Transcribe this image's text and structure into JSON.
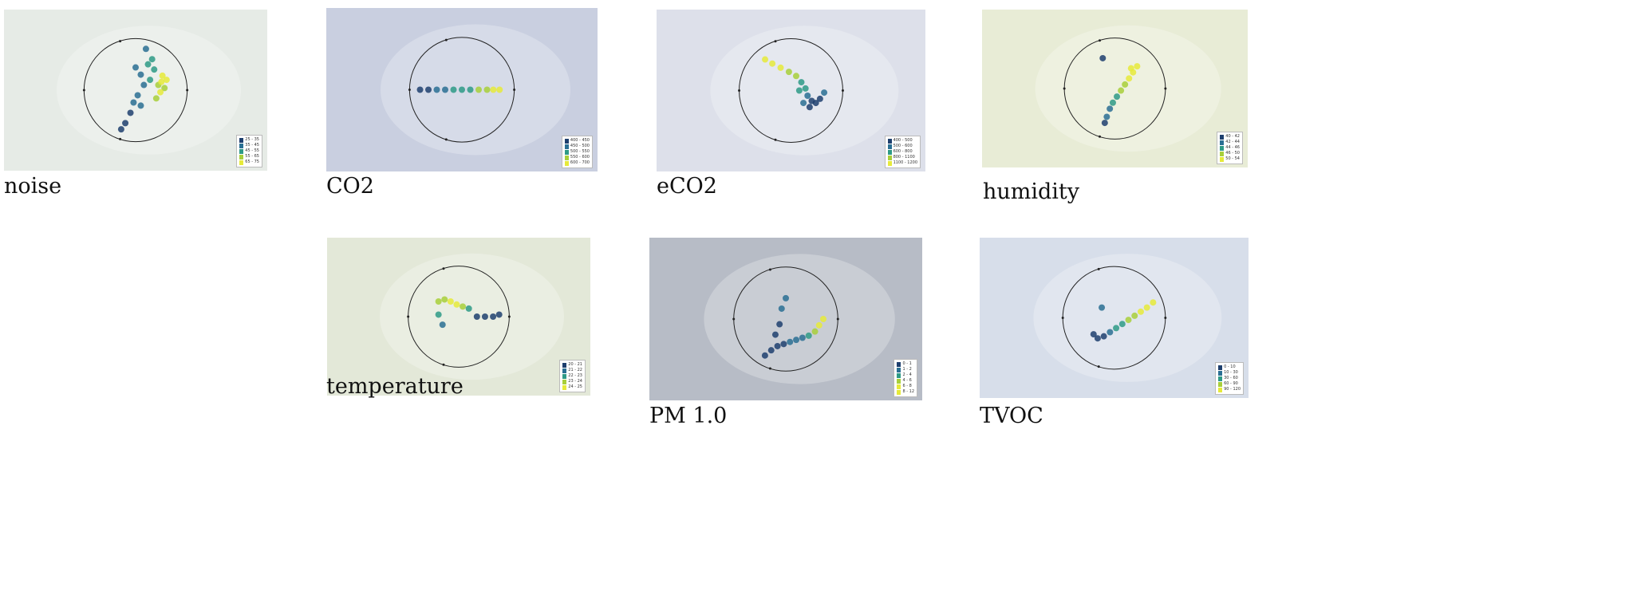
{
  "palette": [
    "#1e3f6e",
    "#2a6f93",
    "#2e9a86",
    "#a8cf3a",
    "#e6ea3a"
  ],
  "panels": [
    {
      "caption": "noise",
      "chart_data": {
        "type": "scatter",
        "background": "#e6ebe6",
        "legend": [
          "25 - 35",
          "35 - 45",
          "45 - 55",
          "55 - 65",
          "65 - 75"
        ],
        "points": [
          {
            "x": 0.72,
            "y": 0.45,
            "v": 3
          },
          {
            "x": 0.75,
            "y": 0.42,
            "v": 4
          },
          {
            "x": 0.78,
            "y": 0.48,
            "v": 3
          },
          {
            "x": 0.74,
            "y": 0.52,
            "v": 4
          },
          {
            "x": 0.7,
            "y": 0.58,
            "v": 3
          },
          {
            "x": 0.76,
            "y": 0.36,
            "v": 4
          },
          {
            "x": 0.68,
            "y": 0.3,
            "v": 2
          },
          {
            "x": 0.62,
            "y": 0.25,
            "v": 2
          },
          {
            "x": 0.66,
            "y": 0.2,
            "v": 2
          },
          {
            "x": 0.55,
            "y": 0.35,
            "v": 1
          },
          {
            "x": 0.58,
            "y": 0.45,
            "v": 1
          },
          {
            "x": 0.52,
            "y": 0.55,
            "v": 1
          },
          {
            "x": 0.48,
            "y": 0.62,
            "v": 1
          },
          {
            "x": 0.45,
            "y": 0.72,
            "v": 0
          },
          {
            "x": 0.4,
            "y": 0.82,
            "v": 0
          },
          {
            "x": 0.36,
            "y": 0.88,
            "v": 0
          },
          {
            "x": 0.6,
            "y": 0.1,
            "v": 1
          },
          {
            "x": 0.5,
            "y": 0.28,
            "v": 1
          },
          {
            "x": 0.64,
            "y": 0.4,
            "v": 2
          },
          {
            "x": 0.8,
            "y": 0.4,
            "v": 4
          },
          {
            "x": 0.55,
            "y": 0.65,
            "v": 1
          }
        ]
      }
    },
    {
      "caption": "CO2",
      "chart_data": {
        "type": "scatter",
        "background": "#c9cfe0",
        "legend": [
          "400 - 450",
          "450 - 500",
          "500 - 550",
          "550 - 600",
          "600 - 700"
        ],
        "points": [
          {
            "x": 0.1,
            "y": 0.5,
            "v": 0
          },
          {
            "x": 0.18,
            "y": 0.5,
            "v": 0
          },
          {
            "x": 0.26,
            "y": 0.5,
            "v": 1
          },
          {
            "x": 0.34,
            "y": 0.5,
            "v": 1
          },
          {
            "x": 0.42,
            "y": 0.5,
            "v": 2
          },
          {
            "x": 0.5,
            "y": 0.5,
            "v": 2
          },
          {
            "x": 0.58,
            "y": 0.5,
            "v": 2
          },
          {
            "x": 0.66,
            "y": 0.5,
            "v": 3
          },
          {
            "x": 0.74,
            "y": 0.5,
            "v": 3
          },
          {
            "x": 0.8,
            "y": 0.5,
            "v": 4
          },
          {
            "x": 0.86,
            "y": 0.5,
            "v": 4
          }
        ]
      }
    },
    {
      "caption": "eCO2",
      "chart_data": {
        "type": "scatter",
        "background": "#dde0ea",
        "legend": [
          "400 - 500",
          "500 - 600",
          "600 - 800",
          "800 - 1100",
          "1100 - 1200"
        ],
        "points": [
          {
            "x": 0.25,
            "y": 0.2,
            "v": 4
          },
          {
            "x": 0.32,
            "y": 0.24,
            "v": 4
          },
          {
            "x": 0.4,
            "y": 0.28,
            "v": 4
          },
          {
            "x": 0.48,
            "y": 0.32,
            "v": 3
          },
          {
            "x": 0.55,
            "y": 0.36,
            "v": 3
          },
          {
            "x": 0.6,
            "y": 0.42,
            "v": 2
          },
          {
            "x": 0.64,
            "y": 0.48,
            "v": 2
          },
          {
            "x": 0.66,
            "y": 0.55,
            "v": 1
          },
          {
            "x": 0.7,
            "y": 0.6,
            "v": 0
          },
          {
            "x": 0.74,
            "y": 0.62,
            "v": 0
          },
          {
            "x": 0.78,
            "y": 0.58,
            "v": 0
          },
          {
            "x": 0.82,
            "y": 0.52,
            "v": 1
          },
          {
            "x": 0.68,
            "y": 0.66,
            "v": 0
          },
          {
            "x": 0.62,
            "y": 0.62,
            "v": 1
          },
          {
            "x": 0.58,
            "y": 0.5,
            "v": 2
          }
        ]
      }
    },
    {
      "caption": "humidity",
      "chart_data": {
        "type": "scatter",
        "background": "#e8ecd6",
        "legend": [
          "40 - 42",
          "42 - 44",
          "44 - 46",
          "46 - 50",
          "50 - 54"
        ],
        "points": [
          {
            "x": 0.72,
            "y": 0.28,
            "v": 4
          },
          {
            "x": 0.68,
            "y": 0.34,
            "v": 4
          },
          {
            "x": 0.64,
            "y": 0.4,
            "v": 4
          },
          {
            "x": 0.6,
            "y": 0.46,
            "v": 3
          },
          {
            "x": 0.56,
            "y": 0.52,
            "v": 3
          },
          {
            "x": 0.52,
            "y": 0.58,
            "v": 2
          },
          {
            "x": 0.48,
            "y": 0.64,
            "v": 2
          },
          {
            "x": 0.45,
            "y": 0.7,
            "v": 1
          },
          {
            "x": 0.42,
            "y": 0.78,
            "v": 1
          },
          {
            "x": 0.4,
            "y": 0.84,
            "v": 0
          },
          {
            "x": 0.38,
            "y": 0.2,
            "v": 0
          },
          {
            "x": 0.66,
            "y": 0.3,
            "v": 4
          }
        ]
      }
    },
    {
      "caption": "temperature",
      "chart_data": {
        "type": "scatter",
        "background": "#e3e8d8",
        "legend": [
          "20 - 21",
          "21 - 22",
          "22 - 23",
          "23 - 24",
          "24 - 25"
        ],
        "points": [
          {
            "x": 0.3,
            "y": 0.35,
            "v": 3
          },
          {
            "x": 0.36,
            "y": 0.33,
            "v": 3
          },
          {
            "x": 0.42,
            "y": 0.35,
            "v": 4
          },
          {
            "x": 0.48,
            "y": 0.38,
            "v": 4
          },
          {
            "x": 0.54,
            "y": 0.4,
            "v": 3
          },
          {
            "x": 0.6,
            "y": 0.42,
            "v": 2
          },
          {
            "x": 0.3,
            "y": 0.48,
            "v": 2
          },
          {
            "x": 0.34,
            "y": 0.58,
            "v": 1
          },
          {
            "x": 0.68,
            "y": 0.5,
            "v": 0
          },
          {
            "x": 0.76,
            "y": 0.5,
            "v": 0
          },
          {
            "x": 0.84,
            "y": 0.5,
            "v": 0
          },
          {
            "x": 0.9,
            "y": 0.48,
            "v": 0
          }
        ]
      }
    },
    {
      "caption": "PM 1.0",
      "chart_data": {
        "type": "scatter",
        "background": "#b7bcc6",
        "legend": [
          "0 - 1",
          "1 - 2",
          "2 - 4",
          "4 - 6",
          "6 - 8",
          "8 - 12"
        ],
        "points": [
          {
            "x": 0.3,
            "y": 0.85,
            "v": 0
          },
          {
            "x": 0.36,
            "y": 0.8,
            "v": 0
          },
          {
            "x": 0.42,
            "y": 0.76,
            "v": 0
          },
          {
            "x": 0.48,
            "y": 0.74,
            "v": 0
          },
          {
            "x": 0.54,
            "y": 0.72,
            "v": 1
          },
          {
            "x": 0.6,
            "y": 0.7,
            "v": 1
          },
          {
            "x": 0.66,
            "y": 0.68,
            "v": 1
          },
          {
            "x": 0.72,
            "y": 0.66,
            "v": 2
          },
          {
            "x": 0.78,
            "y": 0.62,
            "v": 3
          },
          {
            "x": 0.82,
            "y": 0.56,
            "v": 4
          },
          {
            "x": 0.86,
            "y": 0.5,
            "v": 5
          },
          {
            "x": 0.5,
            "y": 0.3,
            "v": 1
          },
          {
            "x": 0.46,
            "y": 0.4,
            "v": 1
          },
          {
            "x": 0.44,
            "y": 0.55,
            "v": 0
          },
          {
            "x": 0.4,
            "y": 0.65,
            "v": 0
          }
        ]
      }
    },
    {
      "caption": "TVOC",
      "chart_data": {
        "type": "scatter",
        "background": "#d7deea",
        "legend": [
          "0 - 10",
          "10 - 30",
          "30 - 60",
          "60 - 90",
          "90 - 120"
        ],
        "points": [
          {
            "x": 0.88,
            "y": 0.35,
            "v": 4
          },
          {
            "x": 0.82,
            "y": 0.4,
            "v": 4
          },
          {
            "x": 0.76,
            "y": 0.44,
            "v": 4
          },
          {
            "x": 0.7,
            "y": 0.48,
            "v": 3
          },
          {
            "x": 0.64,
            "y": 0.52,
            "v": 3
          },
          {
            "x": 0.58,
            "y": 0.56,
            "v": 2
          },
          {
            "x": 0.52,
            "y": 0.6,
            "v": 2
          },
          {
            "x": 0.46,
            "y": 0.64,
            "v": 1
          },
          {
            "x": 0.4,
            "y": 0.68,
            "v": 0
          },
          {
            "x": 0.34,
            "y": 0.7,
            "v": 0
          },
          {
            "x": 0.3,
            "y": 0.66,
            "v": 0
          },
          {
            "x": 0.38,
            "y": 0.4,
            "v": 1
          }
        ]
      }
    }
  ]
}
